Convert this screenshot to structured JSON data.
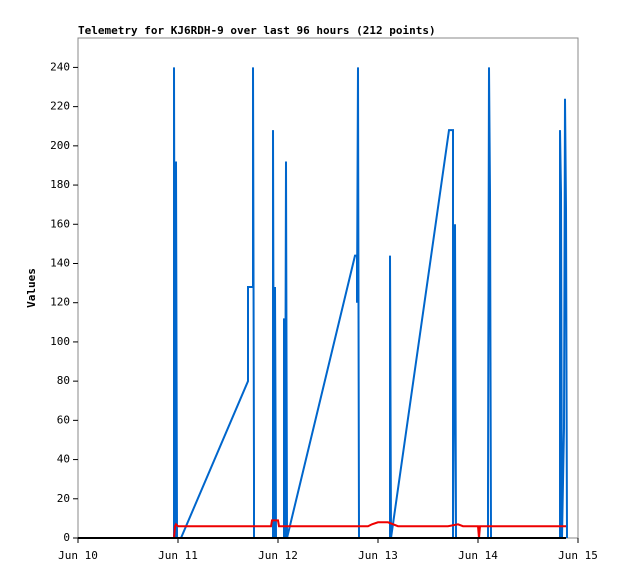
{
  "chart_data": {
    "type": "line",
    "title": "Telemetry for KJ6RDH-9 over last 96 hours (212 points)",
    "y_label": "Values",
    "xlim": [
      10,
      15
    ],
    "xticks": [
      {
        "value": 10,
        "label": "Jun 10"
      },
      {
        "value": 11,
        "label": "Jun 11"
      },
      {
        "value": 12,
        "label": "Jun 12"
      },
      {
        "value": 13,
        "label": "Jun 13"
      },
      {
        "value": 14,
        "label": "Jun 14"
      },
      {
        "value": 15,
        "label": "Jun 15"
      }
    ],
    "ylim": [
      0,
      255
    ],
    "yticks": [
      0,
      20,
      40,
      60,
      80,
      100,
      120,
      140,
      160,
      180,
      200,
      220,
      240
    ],
    "grid": false,
    "series": [
      {
        "color": "#0066cc",
        "x": [
          10.96,
          10.96,
          10.97,
          10.98,
          10.99,
          11.03,
          11.7,
          11.7,
          11.75,
          11.75,
          11.76,
          11.76,
          11.95,
          11.95,
          11.96,
          11.97,
          11.98,
          12.06,
          12.06,
          12.07,
          12.08,
          12.09,
          12.77,
          12.79,
          12.79,
          12.8,
          12.81,
          13.12,
          13.12,
          13.13,
          13.71,
          13.75,
          13.75,
          13.77,
          13.78,
          14.1,
          14.1,
          14.11,
          14.12,
          14.13,
          14.82,
          14.82,
          14.83,
          14.84,
          14.86,
          14.87,
          14.88,
          14.89
        ],
        "values": [
          0,
          240,
          0,
          192,
          0,
          0,
          80,
          128,
          128,
          240,
          32,
          0,
          0,
          208,
          0,
          128,
          0,
          0,
          112,
          0,
          192,
          0,
          144,
          144,
          120,
          240,
          0,
          0,
          144,
          0,
          208,
          208,
          0,
          160,
          0,
          0,
          24,
          240,
          176,
          0,
          0,
          208,
          176,
          0,
          56,
          224,
          168,
          0
        ]
      },
      {
        "color": "#ee0000",
        "x": [
          10.96,
          10.97,
          10.98,
          11.0,
          11.93,
          11.94,
          12.0,
          12.01,
          12.9,
          12.94,
          13.0,
          13.1,
          13.2,
          13.7,
          13.8,
          13.85,
          14.0,
          14.01,
          14.02,
          14.88
        ],
        "values": [
          0,
          6,
          7,
          6,
          6,
          9,
          9,
          6,
          6,
          7,
          8,
          8,
          6,
          6,
          7,
          6,
          6,
          0,
          6,
          6
        ]
      },
      {
        "color": "#000000",
        "x": [
          10,
          14.88
        ],
        "values": [
          0,
          0
        ]
      }
    ]
  }
}
